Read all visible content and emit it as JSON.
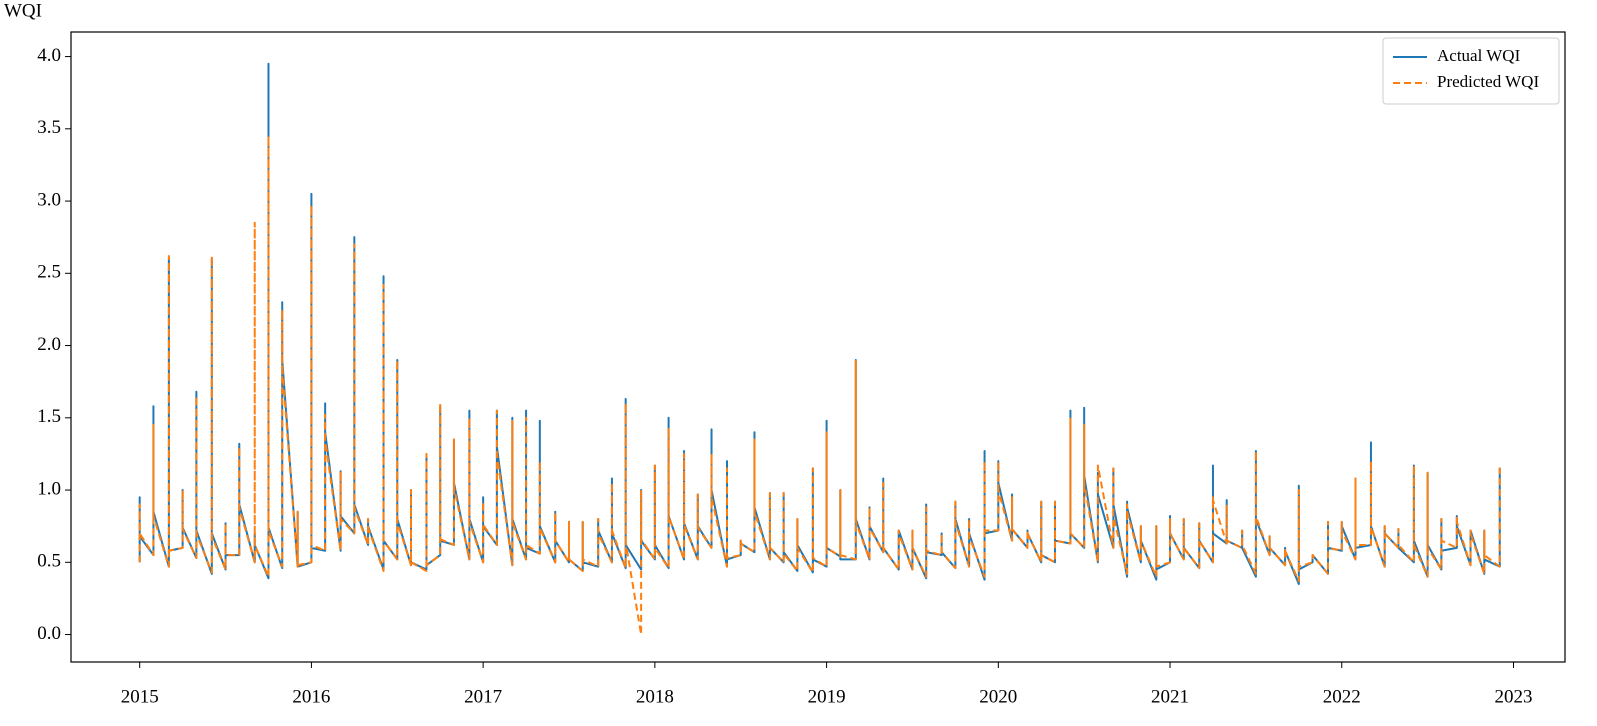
{
  "chart_data": {
    "type": "line",
    "y_label": "WQI",
    "x": [
      2015,
      2015,
      2015,
      2015.08,
      2015.08,
      2015.08,
      2015.17,
      2015.17,
      2015.17,
      2015.25,
      2015.25,
      2015.25,
      2015.33,
      2015.33,
      2015.33,
      2015.42,
      2015.42,
      2015.42,
      2015.5,
      2015.5,
      2015.5,
      2015.58,
      2015.58,
      2015.58,
      2015.67,
      2015.67,
      2015.67,
      2015.75,
      2015.75,
      2015.75,
      2015.83,
      2015.83,
      2015.83,
      2015.92,
      2015.92,
      2015.92,
      2016,
      2016,
      2016,
      2016.08,
      2016.08,
      2016.08,
      2016.17,
      2016.17,
      2016.17,
      2016.25,
      2016.25,
      2016.25,
      2016.33,
      2016.33,
      2016.33,
      2016.42,
      2016.42,
      2016.42,
      2016.5,
      2016.5,
      2016.5,
      2016.58,
      2016.58,
      2016.58,
      2016.67,
      2016.67,
      2016.67,
      2016.75,
      2016.75,
      2016.75,
      2016.83,
      2016.83,
      2016.83,
      2016.92,
      2016.92,
      2016.92,
      2017,
      2017,
      2017,
      2017.08,
      2017.08,
      2017.08,
      2017.17,
      2017.17,
      2017.17,
      2017.25,
      2017.25,
      2017.25,
      2017.33,
      2017.33,
      2017.33,
      2017.42,
      2017.42,
      2017.42,
      2017.5,
      2017.5,
      2017.5,
      2017.58,
      2017.58,
      2017.58,
      2017.67,
      2017.67,
      2017.67,
      2017.75,
      2017.75,
      2017.75,
      2017.83,
      2017.83,
      2017.83,
      2017.92,
      2017.92,
      2017.92,
      2018,
      2018,
      2018,
      2018.08,
      2018.08,
      2018.08,
      2018.17,
      2018.17,
      2018.17,
      2018.25,
      2018.25,
      2018.25,
      2018.33,
      2018.33,
      2018.33,
      2018.42,
      2018.42,
      2018.42,
      2018.5,
      2018.5,
      2018.5,
      2018.58,
      2018.58,
      2018.58,
      2018.67,
      2018.67,
      2018.67,
      2018.75,
      2018.75,
      2018.75,
      2018.83,
      2018.83,
      2018.83,
      2018.92,
      2018.92,
      2018.92,
      2019,
      2019,
      2019,
      2019.08,
      2019.08,
      2019.08,
      2019.17,
      2019.17,
      2019.17,
      2019.25,
      2019.25,
      2019.25,
      2019.33,
      2019.33,
      2019.33,
      2019.42,
      2019.42,
      2019.42,
      2019.5,
      2019.5,
      2019.5,
      2019.58,
      2019.58,
      2019.58,
      2019.67,
      2019.67,
      2019.67,
      2019.75,
      2019.75,
      2019.75,
      2019.83,
      2019.83,
      2019.83,
      2019.92,
      2019.92,
      2019.92,
      2020,
      2020,
      2020,
      2020.08,
      2020.08,
      2020.08,
      2020.17,
      2020.17,
      2020.17,
      2020.25,
      2020.25,
      2020.25,
      2020.33,
      2020.33,
      2020.33,
      2020.42,
      2020.42,
      2020.42,
      2020.5,
      2020.5,
      2020.5,
      2020.58,
      2020.58,
      2020.58,
      2020.67,
      2020.67,
      2020.67,
      2020.75,
      2020.75,
      2020.75,
      2020.83,
      2020.83,
      2020.83,
      2020.92,
      2020.92,
      2020.92,
      2021,
      2021,
      2021,
      2021.08,
      2021.08,
      2021.08,
      2021.17,
      2021.17,
      2021.17,
      2021.25,
      2021.25,
      2021.25,
      2021.33,
      2021.33,
      2021.33,
      2021.42,
      2021.42,
      2021.42,
      2021.5,
      2021.5,
      2021.5,
      2021.58,
      2021.58,
      2021.58,
      2021.67,
      2021.67,
      2021.67,
      2021.75,
      2021.75,
      2021.75,
      2021.83,
      2021.83,
      2021.83,
      2021.92,
      2021.92,
      2021.92,
      2022,
      2022,
      2022,
      2022.08,
      2022.08,
      2022.08,
      2022.17,
      2022.17,
      2022.17,
      2022.25,
      2022.25,
      2022.25,
      2022.33,
      2022.33,
      2022.33,
      2022.42,
      2022.42,
      2022.42,
      2022.5,
      2022.5,
      2022.5,
      2022.58,
      2022.58,
      2022.58,
      2022.67,
      2022.67,
      2022.67,
      2022.75,
      2022.75,
      2022.75,
      2022.83,
      2022.83,
      2022.83,
      2022.92,
      2022.92,
      2022.92
    ],
    "series": [
      {
        "name": "Actual WQI",
        "color": "#1f77b4",
        "dash": false,
        "values": [
          0.5,
          0.95,
          0.68,
          0.55,
          1.58,
          0.85,
          0.47,
          2.6,
          0.58,
          0.6,
          1.0,
          0.74,
          0.53,
          1.68,
          0.72,
          0.42,
          2.6,
          0.7,
          0.45,
          0.77,
          0.55,
          0.55,
          1.32,
          0.9,
          0.5,
          0.7,
          0.62,
          0.39,
          3.95,
          0.74,
          0.46,
          2.3,
          1.9,
          0.47,
          0.85,
          0.47,
          0.5,
          3.05,
          0.6,
          0.58,
          1.6,
          1.4,
          0.58,
          1.13,
          0.82,
          0.7,
          2.75,
          0.9,
          0.62,
          0.8,
          0.75,
          0.45,
          2.48,
          0.65,
          0.52,
          1.9,
          0.8,
          0.48,
          1.0,
          0.5,
          0.45,
          1.22,
          0.48,
          0.55,
          1.58,
          0.65,
          0.62,
          1.35,
          1.05,
          0.52,
          1.55,
          0.8,
          0.5,
          0.95,
          0.75,
          0.62,
          1.55,
          1.3,
          0.48,
          1.5,
          0.8,
          0.52,
          1.55,
          0.6,
          0.56,
          1.48,
          0.75,
          0.5,
          0.85,
          0.65,
          0.5,
          0.78,
          0.52,
          0.44,
          0.78,
          0.5,
          0.47,
          0.8,
          0.72,
          0.5,
          1.08,
          0.7,
          0.46,
          1.63,
          0.62,
          0.45,
          1.0,
          0.65,
          0.52,
          1.17,
          0.62,
          0.46,
          1.5,
          0.82,
          0.52,
          1.27,
          0.77,
          0.52,
          0.97,
          0.75,
          0.6,
          1.42,
          1.0,
          0.47,
          1.2,
          0.52,
          0.55,
          0.65,
          0.63,
          0.57,
          1.4,
          0.88,
          0.52,
          0.98,
          0.6,
          0.5,
          0.98,
          0.57,
          0.44,
          0.8,
          0.62,
          0.43,
          1.15,
          0.52,
          0.47,
          1.48,
          0.6,
          0.54,
          1.0,
          0.52,
          0.52,
          1.9,
          0.8,
          0.52,
          0.88,
          0.75,
          0.57,
          1.08,
          0.6,
          0.45,
          0.72,
          0.72,
          0.45,
          0.72,
          0.6,
          0.39,
          0.9,
          0.57,
          0.55,
          0.7,
          0.57,
          0.46,
          0.92,
          0.8,
          0.47,
          0.8,
          0.7,
          0.38,
          1.27,
          0.7,
          0.72,
          1.2,
          1.05,
          0.65,
          0.97,
          0.73,
          0.6,
          0.72,
          0.7,
          0.5,
          0.92,
          0.55,
          0.5,
          0.92,
          0.65,
          0.63,
          1.55,
          0.7,
          0.6,
          1.57,
          1.1,
          0.5,
          1.12,
          0.97,
          0.6,
          1.15,
          0.9,
          0.4,
          0.92,
          0.88,
          0.5,
          0.75,
          0.65,
          0.38,
          0.75,
          0.45,
          0.5,
          0.82,
          0.7,
          0.52,
          0.8,
          0.6,
          0.46,
          0.77,
          0.65,
          0.5,
          1.17,
          0.7,
          0.63,
          0.93,
          0.65,
          0.6,
          0.72,
          0.6,
          0.4,
          1.27,
          0.8,
          0.55,
          0.68,
          0.6,
          0.48,
          0.6,
          0.58,
          0.35,
          1.03,
          0.45,
          0.5,
          0.55,
          0.55,
          0.42,
          0.78,
          0.6,
          0.58,
          0.78,
          0.75,
          0.52,
          1.08,
          0.6,
          0.62,
          1.33,
          0.75,
          0.47,
          0.75,
          0.7,
          0.6,
          0.73,
          0.6,
          0.5,
          1.17,
          0.65,
          0.4,
          1.12,
          0.62,
          0.45,
          0.8,
          0.58,
          0.6,
          0.82,
          0.75,
          0.48,
          0.72,
          0.72,
          0.42,
          0.72,
          0.52,
          0.47,
          1.15,
          1.1
        ]
      },
      {
        "name": "Predicted WQI",
        "color": "#ff7f0e",
        "dash": true,
        "values": [
          0.5,
          0.9,
          0.7,
          0.55,
          1.45,
          0.82,
          0.47,
          2.62,
          0.58,
          0.6,
          1.0,
          0.73,
          0.53,
          1.65,
          0.7,
          0.43,
          2.62,
          0.68,
          0.45,
          0.77,
          0.55,
          0.55,
          1.3,
          0.88,
          0.5,
          2.85,
          0.62,
          0.4,
          3.45,
          0.72,
          0.47,
          2.25,
          1.85,
          0.47,
          0.85,
          0.48,
          0.5,
          2.97,
          0.62,
          0.58,
          1.52,
          1.35,
          0.58,
          1.13,
          0.8,
          0.7,
          2.7,
          0.88,
          0.62,
          0.8,
          0.74,
          0.44,
          2.42,
          0.65,
          0.52,
          1.9,
          0.78,
          0.48,
          1.0,
          0.5,
          0.44,
          1.25,
          0.48,
          0.55,
          1.6,
          0.66,
          0.62,
          1.35,
          1.02,
          0.52,
          1.5,
          0.78,
          0.5,
          0.92,
          0.76,
          0.62,
          1.55,
          1.25,
          0.48,
          1.48,
          0.78,
          0.52,
          1.5,
          0.62,
          0.56,
          1.2,
          0.74,
          0.5,
          0.85,
          0.65,
          0.5,
          0.78,
          0.52,
          0.44,
          0.78,
          0.52,
          0.47,
          0.8,
          0.7,
          0.5,
          1.05,
          0.72,
          0.46,
          1.6,
          0.64,
          0.0,
          1.0,
          0.66,
          0.52,
          1.17,
          0.6,
          0.46,
          1.43,
          0.82,
          0.52,
          1.25,
          0.76,
          0.52,
          0.97,
          0.74,
          0.6,
          1.25,
          0.95,
          0.47,
          1.15,
          0.53,
          0.55,
          0.65,
          0.63,
          0.57,
          1.35,
          0.85,
          0.52,
          0.98,
          0.6,
          0.5,
          0.98,
          0.56,
          0.44,
          0.8,
          0.6,
          0.43,
          1.15,
          0.53,
          0.47,
          1.4,
          0.6,
          0.54,
          1.0,
          0.55,
          0.52,
          1.9,
          0.78,
          0.52,
          0.88,
          0.74,
          0.57,
          1.05,
          0.6,
          0.45,
          0.72,
          0.7,
          0.45,
          0.72,
          0.6,
          0.4,
          0.88,
          0.58,
          0.55,
          0.7,
          0.57,
          0.46,
          0.92,
          0.78,
          0.47,
          0.8,
          0.68,
          0.4,
          1.2,
          0.72,
          0.72,
          1.2,
          1.0,
          0.65,
          0.95,
          0.73,
          0.6,
          0.72,
          0.7,
          0.5,
          0.92,
          0.55,
          0.5,
          0.92,
          0.65,
          0.63,
          1.5,
          0.7,
          0.6,
          1.45,
          1.05,
          0.5,
          1.12,
          1.17,
          0.6,
          1.15,
          0.82,
          0.42,
          0.9,
          0.85,
          0.5,
          0.75,
          0.65,
          0.4,
          0.75,
          0.47,
          0.5,
          0.8,
          0.7,
          0.52,
          0.8,
          0.6,
          0.46,
          0.77,
          0.65,
          0.5,
          0.95,
          0.93,
          0.63,
          0.9,
          0.65,
          0.6,
          0.72,
          0.62,
          0.42,
          1.27,
          0.82,
          0.55,
          0.68,
          0.6,
          0.48,
          0.6,
          0.58,
          0.37,
          1.0,
          0.47,
          0.5,
          0.55,
          0.55,
          0.42,
          0.78,
          0.6,
          0.58,
          0.78,
          0.72,
          0.52,
          1.08,
          0.62,
          0.62,
          1.2,
          0.75,
          0.47,
          0.75,
          0.7,
          0.6,
          0.73,
          0.62,
          0.5,
          1.17,
          0.62,
          0.4,
          1.12,
          0.6,
          0.45,
          0.8,
          0.65,
          0.6,
          0.82,
          0.78,
          0.48,
          0.72,
          0.7,
          0.42,
          0.72,
          0.55,
          0.47,
          1.15,
          1.12
        ]
      }
    ],
    "xlim": [
      2014.6,
      2023.3
    ],
    "xticks": [
      2015,
      2016,
      2017,
      2018,
      2019,
      2020,
      2021,
      2022,
      2023
    ],
    "ylim": [
      -0.19,
      4.17
    ],
    "yticks": [
      {
        "value": 0,
        "label": "0.0"
      },
      {
        "value": 0.5,
        "label": "0.5"
      },
      {
        "value": 1,
        "label": "1.0"
      },
      {
        "value": 1.5,
        "label": "1.5"
      },
      {
        "value": 2,
        "label": "2.0"
      },
      {
        "value": 2.5,
        "label": "2.5"
      },
      {
        "value": 3,
        "label": "3.0"
      },
      {
        "value": 3.5,
        "label": "3.5"
      },
      {
        "value": 4,
        "label": "4.0"
      }
    ],
    "grid": false,
    "legend": "upper-right"
  }
}
